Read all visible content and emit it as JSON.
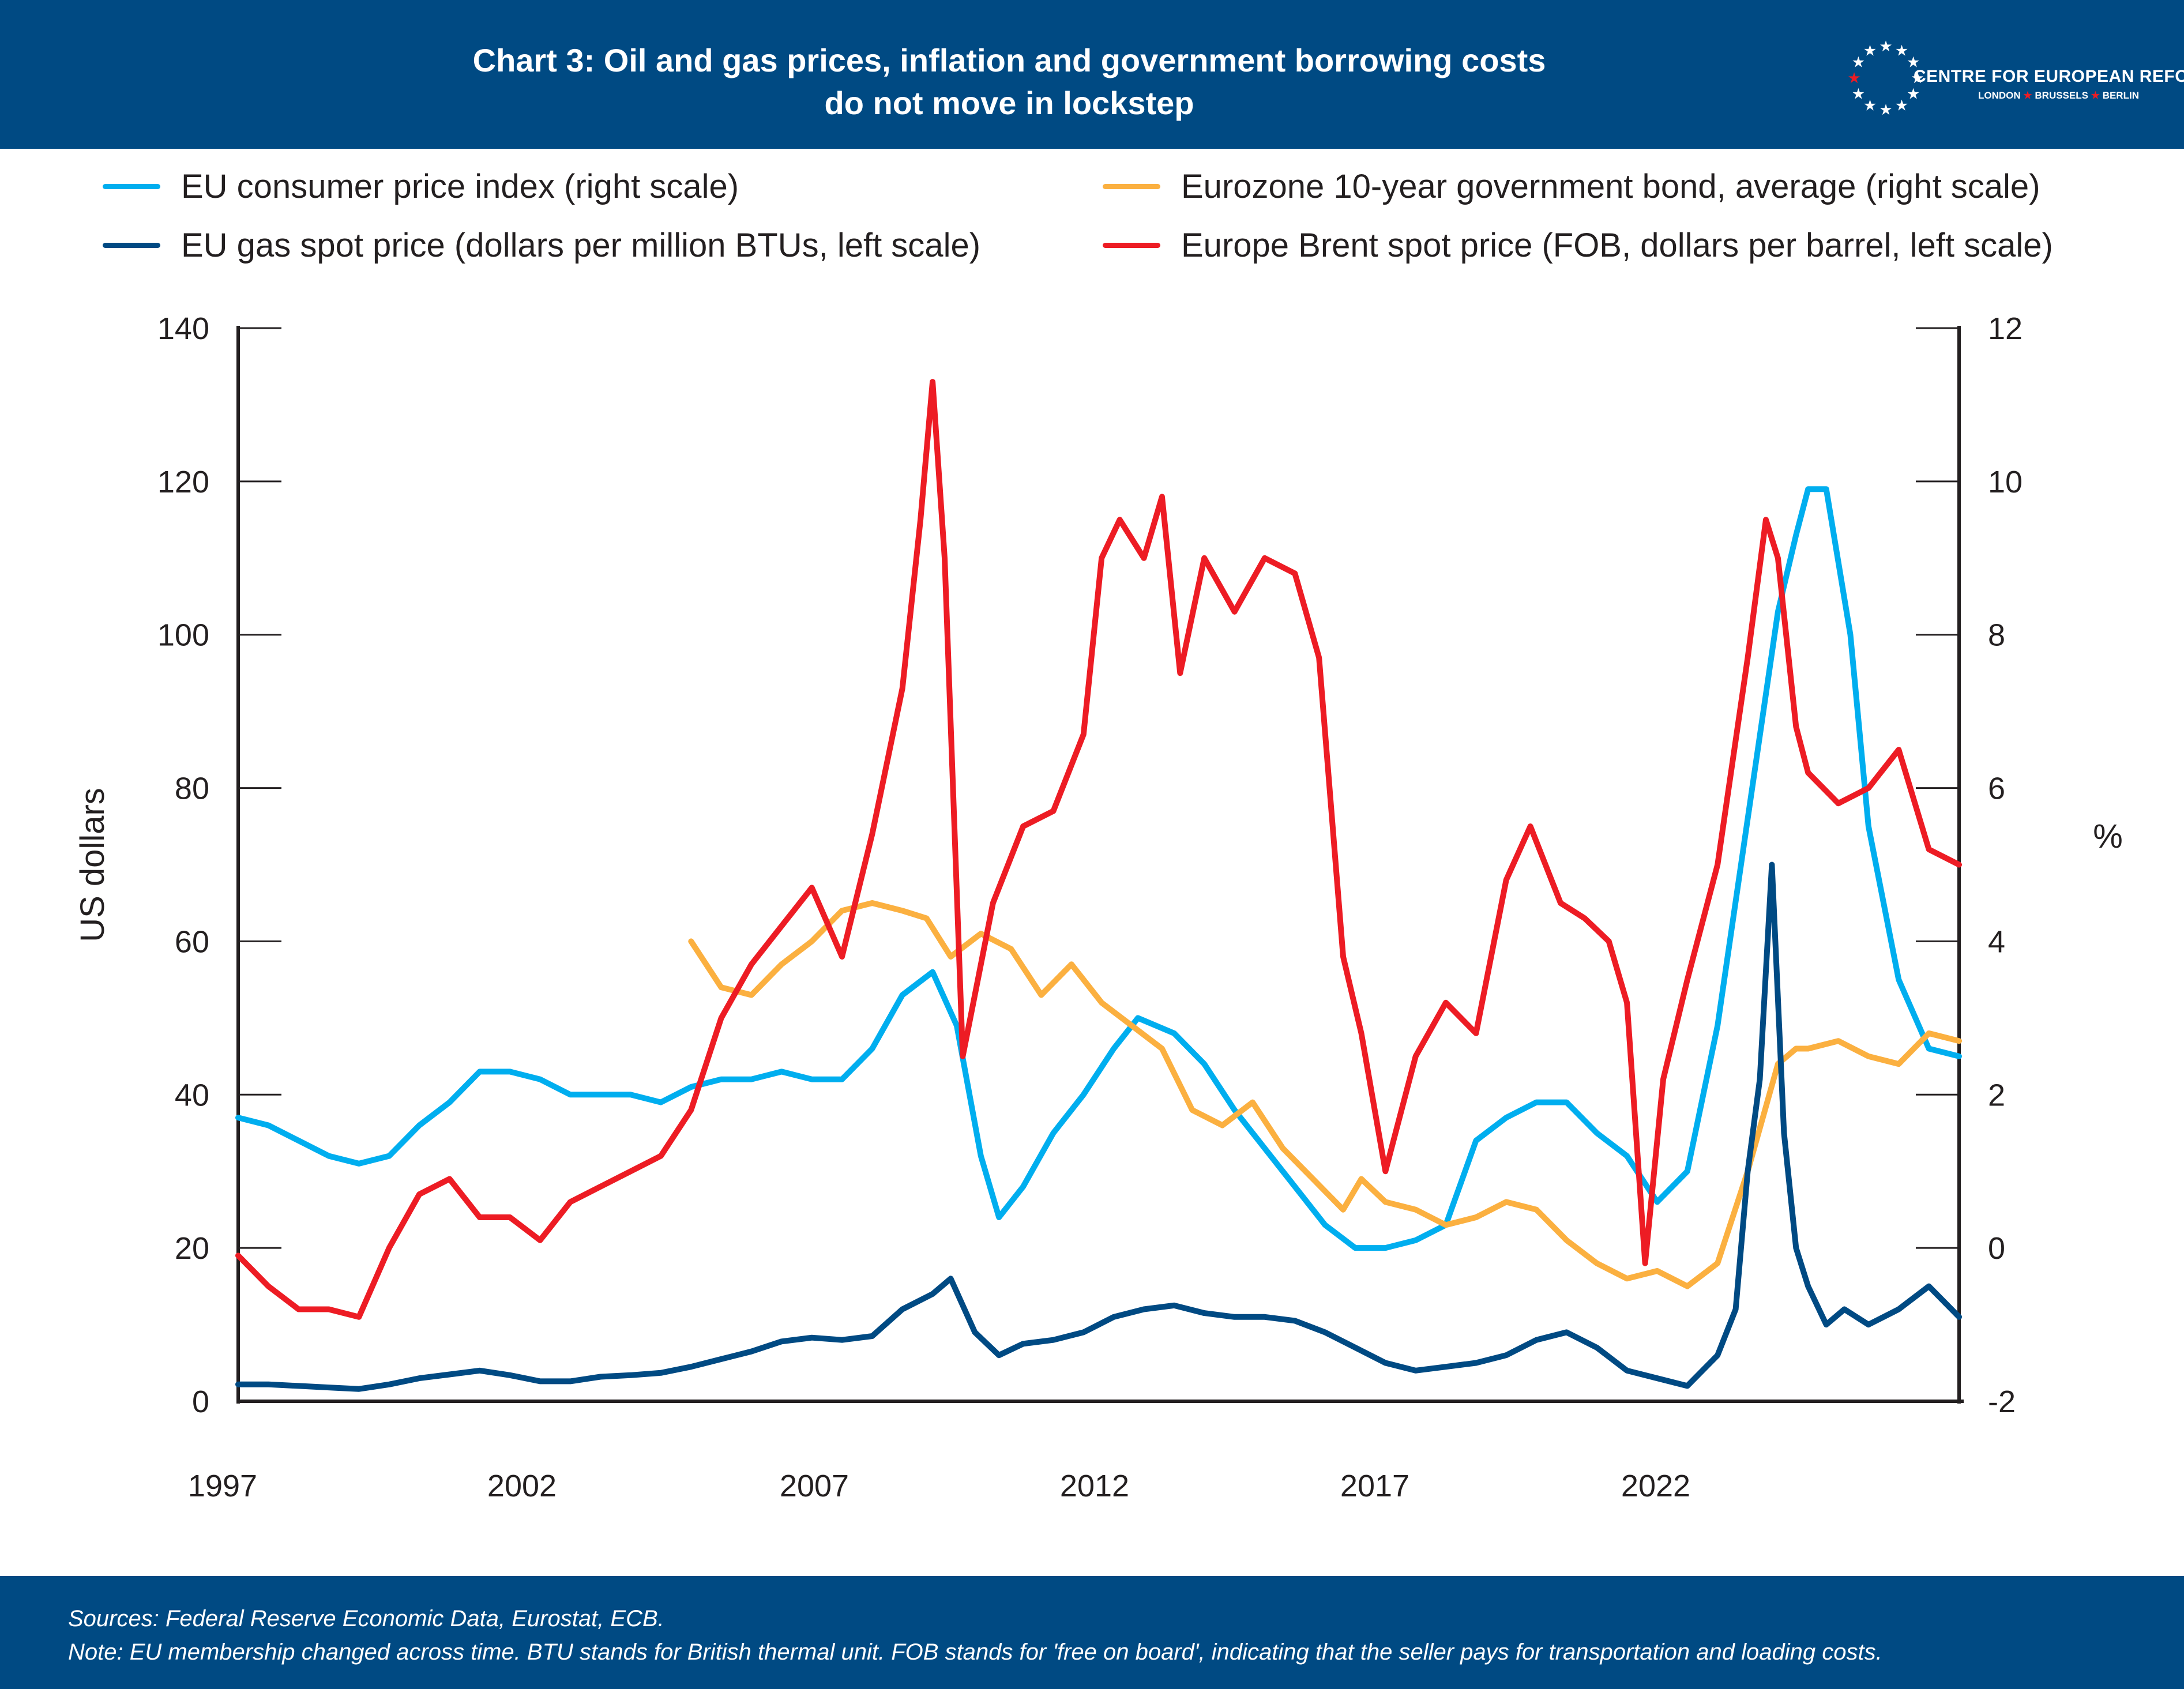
{
  "header": {
    "title_line1": "Chart 3: Oil and gas prices, inflation and government borrowing costs",
    "title_line2": "do not move in lockstep",
    "logo": {
      "name": "CENTRE FOR EUROPEAN REFORM",
      "cities": [
        "LONDON",
        "BRUSSELS",
        "BERLIN"
      ],
      "icon": "eu-stars-circle-icon"
    }
  },
  "footer": {
    "sources": "Sources: Federal Reserve Economic Data, Eurostat, ECB.",
    "note": "Note: EU membership changed across time. BTU stands for British thermal unit. FOB stands for 'free on board', indicating that the seller pays for transportation and loading costs."
  },
  "colors": {
    "header_bg": "#004a83",
    "cpi": "#00aeef",
    "bond": "#fbb040",
    "gas": "#004a83",
    "brent": "#ed1c24",
    "axis": "#231f20"
  },
  "chart_data": {
    "type": "line",
    "title": "Chart 3: Oil and gas prices, inflation and government borrowing costs do not move in lockstep",
    "xlabel": "",
    "ylabel": "US dollars",
    "y2label": "%",
    "xlim": [
      1997,
      2025.5
    ],
    "ylim": [
      0,
      140
    ],
    "y2lim": [
      -2,
      12
    ],
    "x_ticks": [
      1997,
      2002,
      2007,
      2012,
      2017,
      2022
    ],
    "y_ticks": [
      0,
      20,
      40,
      60,
      80,
      100,
      120,
      140
    ],
    "y2_ticks": [
      -2,
      0,
      2,
      4,
      6,
      8,
      10,
      12
    ],
    "grid": false,
    "legend_position": "top",
    "series": [
      {
        "name": "EU consumer price index (right scale)",
        "axis": "right",
        "color": "#00aeef",
        "x": [
          1997,
          1997.5,
          1998,
          1998.5,
          1999,
          1999.5,
          2000,
          2000.5,
          2001,
          2001.5,
          2002,
          2002.5,
          2003,
          2003.5,
          2004,
          2004.5,
          2005,
          2005.5,
          2006,
          2006.5,
          2007,
          2007.5,
          2008,
          2008.5,
          2008.9,
          2009.3,
          2009.6,
          2010,
          2010.5,
          2011,
          2011.5,
          2011.9,
          2012.5,
          2013,
          2013.5,
          2014,
          2014.5,
          2015,
          2015.5,
          2016,
          2016.5,
          2017,
          2017.5,
          2018,
          2018.5,
          2019,
          2019.5,
          2020,
          2020.5,
          2021,
          2021.5,
          2022,
          2022.5,
          2022.8,
          2023,
          2023.3,
          2023.7,
          2024,
          2024.5,
          2025,
          2025.5
        ],
        "y": [
          1.7,
          1.6,
          1.4,
          1.2,
          1.1,
          1.2,
          1.6,
          1.9,
          2.3,
          2.3,
          2.2,
          2.0,
          2.0,
          2.0,
          1.9,
          2.1,
          2.2,
          2.2,
          2.3,
          2.2,
          2.2,
          2.6,
          3.3,
          3.6,
          2.9,
          1.2,
          0.4,
          0.8,
          1.5,
          2.0,
          2.6,
          3.0,
          2.8,
          2.4,
          1.8,
          1.3,
          0.8,
          0.3,
          0.0,
          0.0,
          0.1,
          0.3,
          1.4,
          1.7,
          1.9,
          1.9,
          1.5,
          1.2,
          0.6,
          1.0,
          2.9,
          5.6,
          8.3,
          9.3,
          9.9,
          9.9,
          8.0,
          5.5,
          3.5,
          2.6,
          2.5
        ]
      },
      {
        "name": "Eurozone 10-year government bond, average (right scale)",
        "axis": "right",
        "color": "#fbb040",
        "x": [
          2004.5,
          2005,
          2005.5,
          2006,
          2006.5,
          2007,
          2007.5,
          2008,
          2008.4,
          2008.8,
          2009.3,
          2009.8,
          2010.3,
          2010.8,
          2011.3,
          2011.8,
          2012.3,
          2012.8,
          2013.3,
          2013.8,
          2014.3,
          2014.8,
          2015.3,
          2015.6,
          2016,
          2016.5,
          2017,
          2017.5,
          2018,
          2018.5,
          2019,
          2019.5,
          2020,
          2020.5,
          2021,
          2021.5,
          2022,
          2022.5,
          2022.8,
          2023,
          2023.5,
          2024,
          2024.5,
          2025,
          2025.5
        ],
        "y": [
          4.0,
          3.4,
          3.3,
          3.7,
          4.0,
          4.4,
          4.5,
          4.4,
          4.3,
          3.8,
          4.1,
          3.9,
          3.3,
          3.7,
          3.2,
          2.9,
          2.6,
          1.8,
          1.6,
          1.9,
          1.3,
          0.9,
          0.5,
          0.9,
          0.6,
          0.5,
          0.3,
          0.4,
          0.6,
          0.5,
          0.1,
          -0.2,
          -0.4,
          -0.3,
          -0.5,
          -0.2,
          1.0,
          2.4,
          2.6,
          2.6,
          2.7,
          2.5,
          2.4,
          2.8,
          2.7
        ]
      },
      {
        "name": "EU gas spot price (dollars per million BTUs, left scale)",
        "axis": "left",
        "color": "#004a83",
        "x": [
          1997,
          1997.5,
          1998,
          1998.5,
          1999,
          1999.5,
          2000,
          2000.5,
          2001,
          2001.5,
          2002,
          2002.5,
          2003,
          2003.5,
          2004,
          2004.5,
          2005,
          2005.5,
          2006,
          2006.5,
          2007,
          2007.5,
          2008,
          2008.5,
          2008.8,
          2009.2,
          2009.6,
          2010,
          2010.5,
          2011,
          2011.5,
          2012,
          2012.5,
          2013,
          2013.5,
          2014,
          2014.5,
          2015,
          2015.5,
          2016,
          2016.5,
          2017,
          2017.5,
          2018,
          2018.5,
          2019,
          2019.5,
          2020,
          2020.5,
          2021,
          2021.5,
          2021.8,
          2022,
          2022.2,
          2022.4,
          2022.6,
          2022.8,
          2023,
          2023.3,
          2023.6,
          2024,
          2024.5,
          2025,
          2025.5
        ],
        "y": [
          2.2,
          2.2,
          2.0,
          1.8,
          1.6,
          2.2,
          3.0,
          3.5,
          4.0,
          3.4,
          2.6,
          2.6,
          3.2,
          3.4,
          3.7,
          4.5,
          5.5,
          6.5,
          7.8,
          8.3,
          8.0,
          8.5,
          12,
          14,
          16,
          9,
          6,
          7.5,
          8,
          9,
          11,
          12,
          12.5,
          11.5,
          11,
          11,
          10.5,
          9,
          7,
          5,
          4,
          4.5,
          5,
          6,
          8,
          9,
          7,
          4,
          3,
          2,
          6,
          12,
          30,
          42,
          70,
          35,
          20,
          15,
          10,
          12,
          10,
          12,
          15,
          11
        ]
      },
      {
        "name": "Europe Brent spot price (FOB, dollars per barrel, left scale)",
        "axis": "left",
        "color": "#ed1c24",
        "x": [
          1997,
          1997.5,
          1998,
          1998.5,
          1999,
          1999.5,
          2000,
          2000.5,
          2001,
          2001.5,
          2002,
          2002.5,
          2003,
          2003.5,
          2004,
          2004.5,
          2005,
          2005.5,
          2006,
          2006.5,
          2007,
          2007.5,
          2008,
          2008.3,
          2008.5,
          2008.7,
          2009,
          2009.5,
          2010,
          2010.5,
          2011,
          2011.3,
          2011.6,
          2012,
          2012.3,
          2012.6,
          2013,
          2013.5,
          2014,
          2014.5,
          2014.9,
          2015.3,
          2015.6,
          2016,
          2016.5,
          2017,
          2017.5,
          2018,
          2018.4,
          2018.9,
          2019.3,
          2019.7,
          2020,
          2020.3,
          2020.6,
          2021,
          2021.5,
          2022,
          2022.3,
          2022.5,
          2022.8,
          2023,
          2023.5,
          2024,
          2024.5,
          2025,
          2025.5
        ],
        "y": [
          19,
          15,
          12,
          12,
          11,
          20,
          27,
          29,
          24,
          24,
          21,
          26,
          28,
          30,
          32,
          38,
          50,
          57,
          62,
          67,
          58,
          74,
          93,
          115,
          133,
          110,
          45,
          65,
          75,
          77,
          87,
          110,
          115,
          110,
          118,
          95,
          110,
          103,
          110,
          108,
          97,
          58,
          48,
          30,
          45,
          52,
          48,
          68,
          75,
          65,
          63,
          60,
          52,
          18,
          42,
          55,
          70,
          97,
          115,
          110,
          88,
          82,
          78,
          80,
          85,
          72,
          70
        ]
      }
    ]
  }
}
